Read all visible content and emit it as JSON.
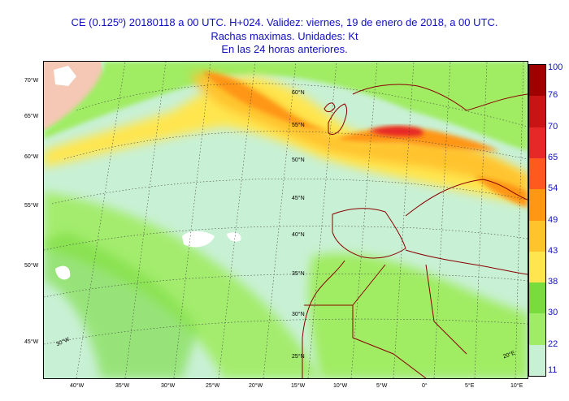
{
  "title": {
    "line1": "CE (0.125º) 20180118 a 00 UTC.  H+024. Validez: viernes, 19 de enero de 2018,  a  00 UTC.",
    "line2": "Rachas maximas. Unidades: Kt",
    "line3": "En las 24 horas anteriores."
  },
  "legend": {
    "levels": [
      "100",
      "76",
      "70",
      "65",
      "54",
      "49",
      "43",
      "38",
      "30",
      "22",
      "11"
    ],
    "colors": [
      "#a00000",
      "#c81414",
      "#e62828",
      "#ff5a1e",
      "#ff9614",
      "#ffc32d",
      "#ffe650",
      "#78dc3c",
      "#a0ec64",
      "#c8f0d4"
    ]
  },
  "map": {
    "lon_labels": [
      "40°W",
      "35°W",
      "30°W",
      "25°W",
      "20°W",
      "15°W",
      "10°W",
      "5°W",
      "0°",
      "5°E",
      "10°E"
    ],
    "left_lat_labels": [
      "70°W",
      "65°W",
      "60°W",
      "55°W",
      "50°W",
      "45°W"
    ],
    "interior_labels": [
      "60°N",
      "55°N",
      "50°N",
      "45°N",
      "40°N",
      "35°N",
      "30°N",
      "25°N",
      "30°W",
      "20°E"
    ],
    "colors": {
      "land_border": "#8b0000",
      "grid": "#444444",
      "white": "#ffffff",
      "pink_land": "#f4c8b4"
    }
  }
}
